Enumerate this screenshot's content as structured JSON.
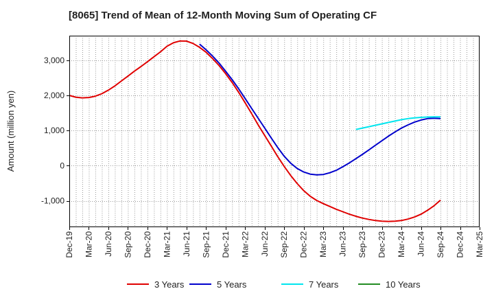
{
  "chart_data": {
    "type": "line",
    "title": "[8065]  Trend of Mean of 12-Month Moving Sum of Operating CF",
    "ylabel": "Amount (million yen)",
    "xlabel": "",
    "ylim": [
      -1750,
      3700
    ],
    "yticks": [
      -1000,
      0,
      1000,
      2000,
      3000
    ],
    "ytick_labels": [
      "-1,000",
      "0",
      "1,000",
      "2,000",
      "3,000"
    ],
    "x_start": "Dec-19",
    "x_months_total": 63,
    "xtick_labels": [
      "Dec-19",
      "Mar-20",
      "Jun-20",
      "Sep-20",
      "Dec-20",
      "Mar-21",
      "Jun-21",
      "Sep-21",
      "Dec-21",
      "Mar-22",
      "Jun-22",
      "Sep-22",
      "Dec-22",
      "Mar-23",
      "Jun-23",
      "Sep-23",
      "Dec-23",
      "Mar-24",
      "Jun-24",
      "Sep-24",
      "Dec-24",
      "Mar-25"
    ],
    "grid": true,
    "legend_position": "bottom",
    "series": [
      {
        "name": "3 Years",
        "color": "#e00000",
        "x": [
          0,
          1,
          2,
          3,
          4,
          5,
          6,
          7,
          8,
          9,
          10,
          11,
          12,
          13,
          14,
          15,
          16,
          17,
          18,
          19,
          20,
          21,
          22,
          23,
          24,
          25,
          26,
          27,
          28,
          29,
          30,
          31,
          32,
          33,
          34,
          35,
          36,
          37,
          38,
          39,
          40,
          41,
          42,
          43,
          44,
          45,
          46,
          47,
          48,
          49,
          50,
          51,
          52,
          53,
          54,
          55,
          56,
          57
        ],
        "y": [
          2000,
          1950,
          1930,
          1940,
          1980,
          2050,
          2150,
          2270,
          2410,
          2550,
          2690,
          2820,
          2960,
          3100,
          3240,
          3400,
          3500,
          3550,
          3545,
          3480,
          3370,
          3230,
          3050,
          2850,
          2620,
          2370,
          2090,
          1790,
          1480,
          1160,
          860,
          560,
          260,
          -20,
          -280,
          -510,
          -710,
          -870,
          -990,
          -1080,
          -1160,
          -1240,
          -1310,
          -1380,
          -1440,
          -1490,
          -1530,
          -1560,
          -1580,
          -1585,
          -1580,
          -1560,
          -1520,
          -1460,
          -1380,
          -1270,
          -1140,
          -980
        ]
      },
      {
        "name": "5 Years",
        "color": "#0000cc",
        "x": [
          20,
          21,
          22,
          23,
          24,
          25,
          26,
          27,
          28,
          29,
          30,
          31,
          32,
          33,
          34,
          35,
          36,
          37,
          38,
          39,
          40,
          41,
          42,
          43,
          44,
          45,
          46,
          47,
          48,
          49,
          50,
          51,
          52,
          53,
          54,
          55,
          56,
          57
        ],
        "y": [
          3460,
          3300,
          3120,
          2920,
          2690,
          2450,
          2190,
          1910,
          1630,
          1350,
          1070,
          790,
          520,
          270,
          70,
          -80,
          -180,
          -240,
          -260,
          -250,
          -200,
          -130,
          -30,
          80,
          200,
          320,
          450,
          580,
          710,
          840,
          960,
          1070,
          1160,
          1240,
          1300,
          1340,
          1350,
          1340
        ]
      },
      {
        "name": "7 Years",
        "color": "#00e5ee",
        "x": [
          44,
          45,
          46,
          47,
          48,
          49,
          50,
          51,
          52,
          53,
          54,
          55,
          56,
          57
        ],
        "y": [
          1030,
          1070,
          1110,
          1150,
          1190,
          1230,
          1270,
          1310,
          1340,
          1360,
          1375,
          1385,
          1390,
          1390
        ]
      },
      {
        "name": "10 Years",
        "color": "#228b22",
        "x": [],
        "y": []
      }
    ]
  }
}
